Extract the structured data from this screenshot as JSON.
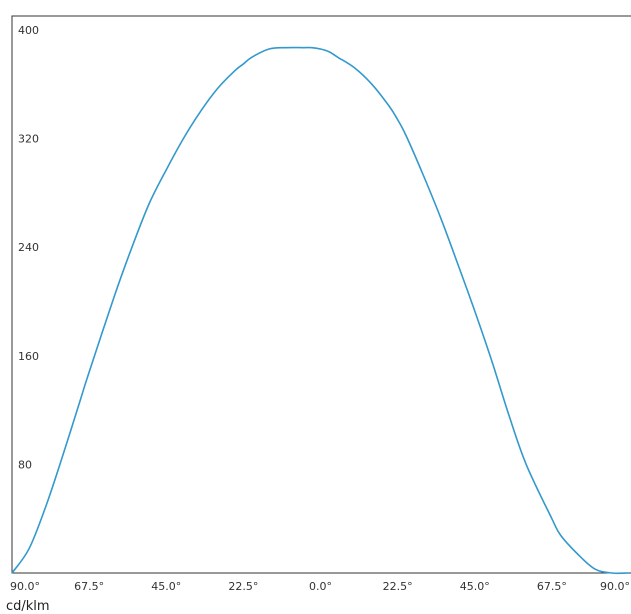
{
  "chart_data": {
    "type": "line",
    "title": "",
    "xlabel": "",
    "ylabel": "cd/klm",
    "grid": false,
    "legend": "none",
    "x_tick_labels": [
      "90.0°",
      "67.5°",
      "45.0°",
      "22.5°",
      "0.0°",
      "22.5°",
      "45.0°",
      "67.5°",
      "90.0°"
    ],
    "x": [
      -90,
      -85,
      -80,
      -75,
      -70,
      -67.5,
      -60,
      -55,
      -50,
      -45,
      -40,
      -35,
      -30,
      -25,
      -22.5,
      -20,
      -15,
      -10,
      -5,
      -2.5,
      0,
      2.5,
      5,
      10,
      15,
      20,
      22.5,
      25,
      30,
      35,
      40,
      45,
      50,
      55,
      60,
      67.5,
      70,
      75,
      80,
      85,
      90
    ],
    "xlim": [
      -90,
      90
    ],
    "ylim": [
      0,
      400
    ],
    "y_ticks": [
      80,
      160,
      240,
      320,
      400
    ],
    "y_tick_labels": [
      "80",
      "160",
      "240",
      "320",
      "400"
    ],
    "series": [
      {
        "color": "#3399cc",
        "values": [
          0,
          18,
          50,
          88,
          128,
          148,
          205,
          240,
          272,
          297,
          320,
          340,
          357,
          370,
          375,
          380,
          386,
          387,
          387,
          387,
          386,
          384,
          380,
          372,
          360,
          344,
          334,
          322,
          293,
          262,
          228,
          193,
          156,
          116,
          80,
          40,
          28,
          14,
          3,
          0,
          0
        ]
      }
    ]
  }
}
